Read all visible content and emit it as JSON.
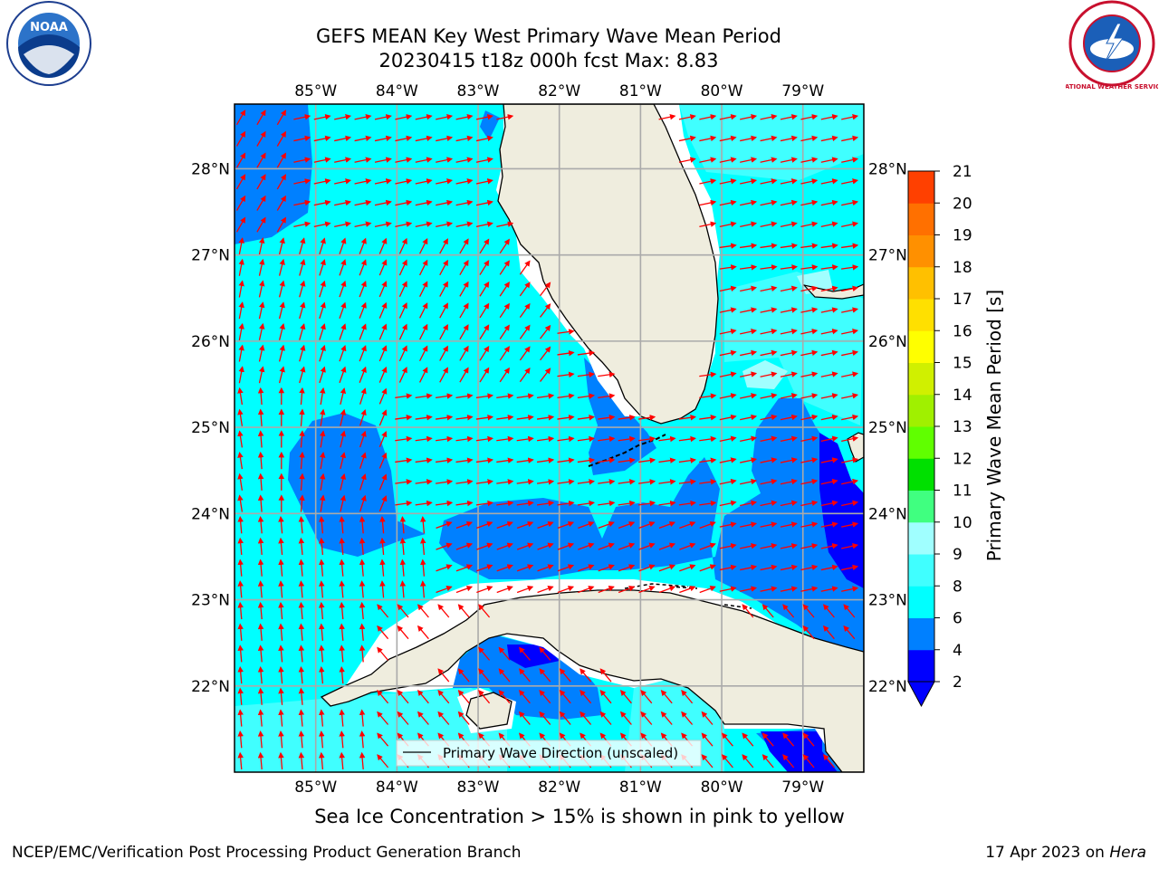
{
  "title": {
    "line1": "GEFS MEAN Key West Primary Wave Mean Period",
    "line2": "20230415 t18z 000h fcst   Max: 8.83"
  },
  "map": {
    "lon_labels": [
      "85°W",
      "84°W",
      "83°W",
      "82°W",
      "81°W",
      "80°W",
      "79°W"
    ],
    "lat_labels": [
      "28°N",
      "27°N",
      "26°N",
      "25°N",
      "24°N",
      "23°N",
      "22°N"
    ],
    "extent": {
      "lon_min": -86.0,
      "lon_max": -78.25,
      "lat_min": 21.0,
      "lat_max": 28.75
    },
    "legend_label": "Primary Wave Direction (unscaled)",
    "arrow_color": "#ff0000",
    "land_color": "#efedde"
  },
  "colorbar": {
    "title": "Primary Wave Mean Period [s]",
    "ticks": [
      "21",
      "20",
      "19",
      "18",
      "17",
      "16",
      "15",
      "14",
      "13",
      "12",
      "11",
      "10",
      "9",
      "8",
      "6",
      "4",
      "2"
    ],
    "levels": [
      2,
      4,
      6,
      8,
      9,
      10,
      11,
      12,
      13,
      14,
      15,
      16,
      17,
      18,
      19,
      20,
      21
    ],
    "colors": [
      "#0000ff",
      "#0080ff",
      "#00ffff",
      "#40ffff",
      "#a0ffff",
      "#40ff80",
      "#00e000",
      "#60ff00",
      "#a0f000",
      "#d0f000",
      "#ffff00",
      "#ffe000",
      "#ffc000",
      "#ff9000",
      "#ff7000",
      "#ff4000",
      "#ff0000"
    ],
    "under_color": "#0000ff"
  },
  "sea_ice_note": "Sea Ice Concentration > 15% is shown in pink to yellow",
  "footer": {
    "left": "NCEP/EMC/Verification Post Processing Product Generation Branch",
    "right_date": "17 Apr 2023 on ",
    "right_host": "Hera"
  },
  "logos": {
    "noaa_text": "NOAA",
    "nws_text": "NATIONAL WEATHER SERVICE"
  }
}
